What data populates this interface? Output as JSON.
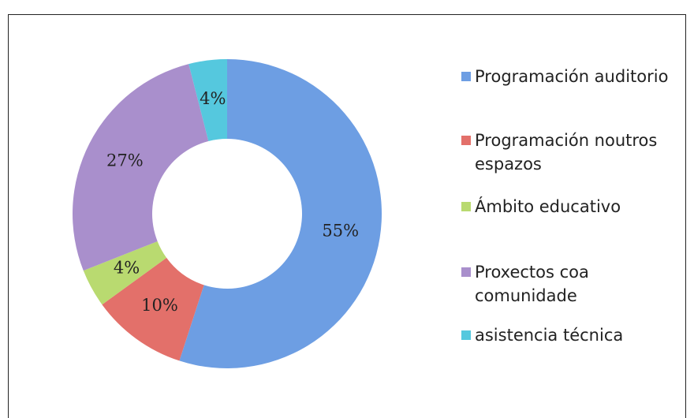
{
  "chart_data": {
    "type": "donut",
    "categories": [
      "Programación auditorio",
      "Programación noutros espazos",
      "Ámbito educativo",
      "Proxectos coa comunidade",
      "asistencia técnica"
    ],
    "values": [
      55,
      10,
      4,
      27,
      4
    ],
    "value_labels": [
      "55%",
      "10%",
      "4%",
      "27%",
      "4%"
    ],
    "colors": [
      "#6d9ee3",
      "#e3706a",
      "#b9da70",
      "#a98fcc",
      "#55c8de"
    ],
    "legend": "right"
  }
}
